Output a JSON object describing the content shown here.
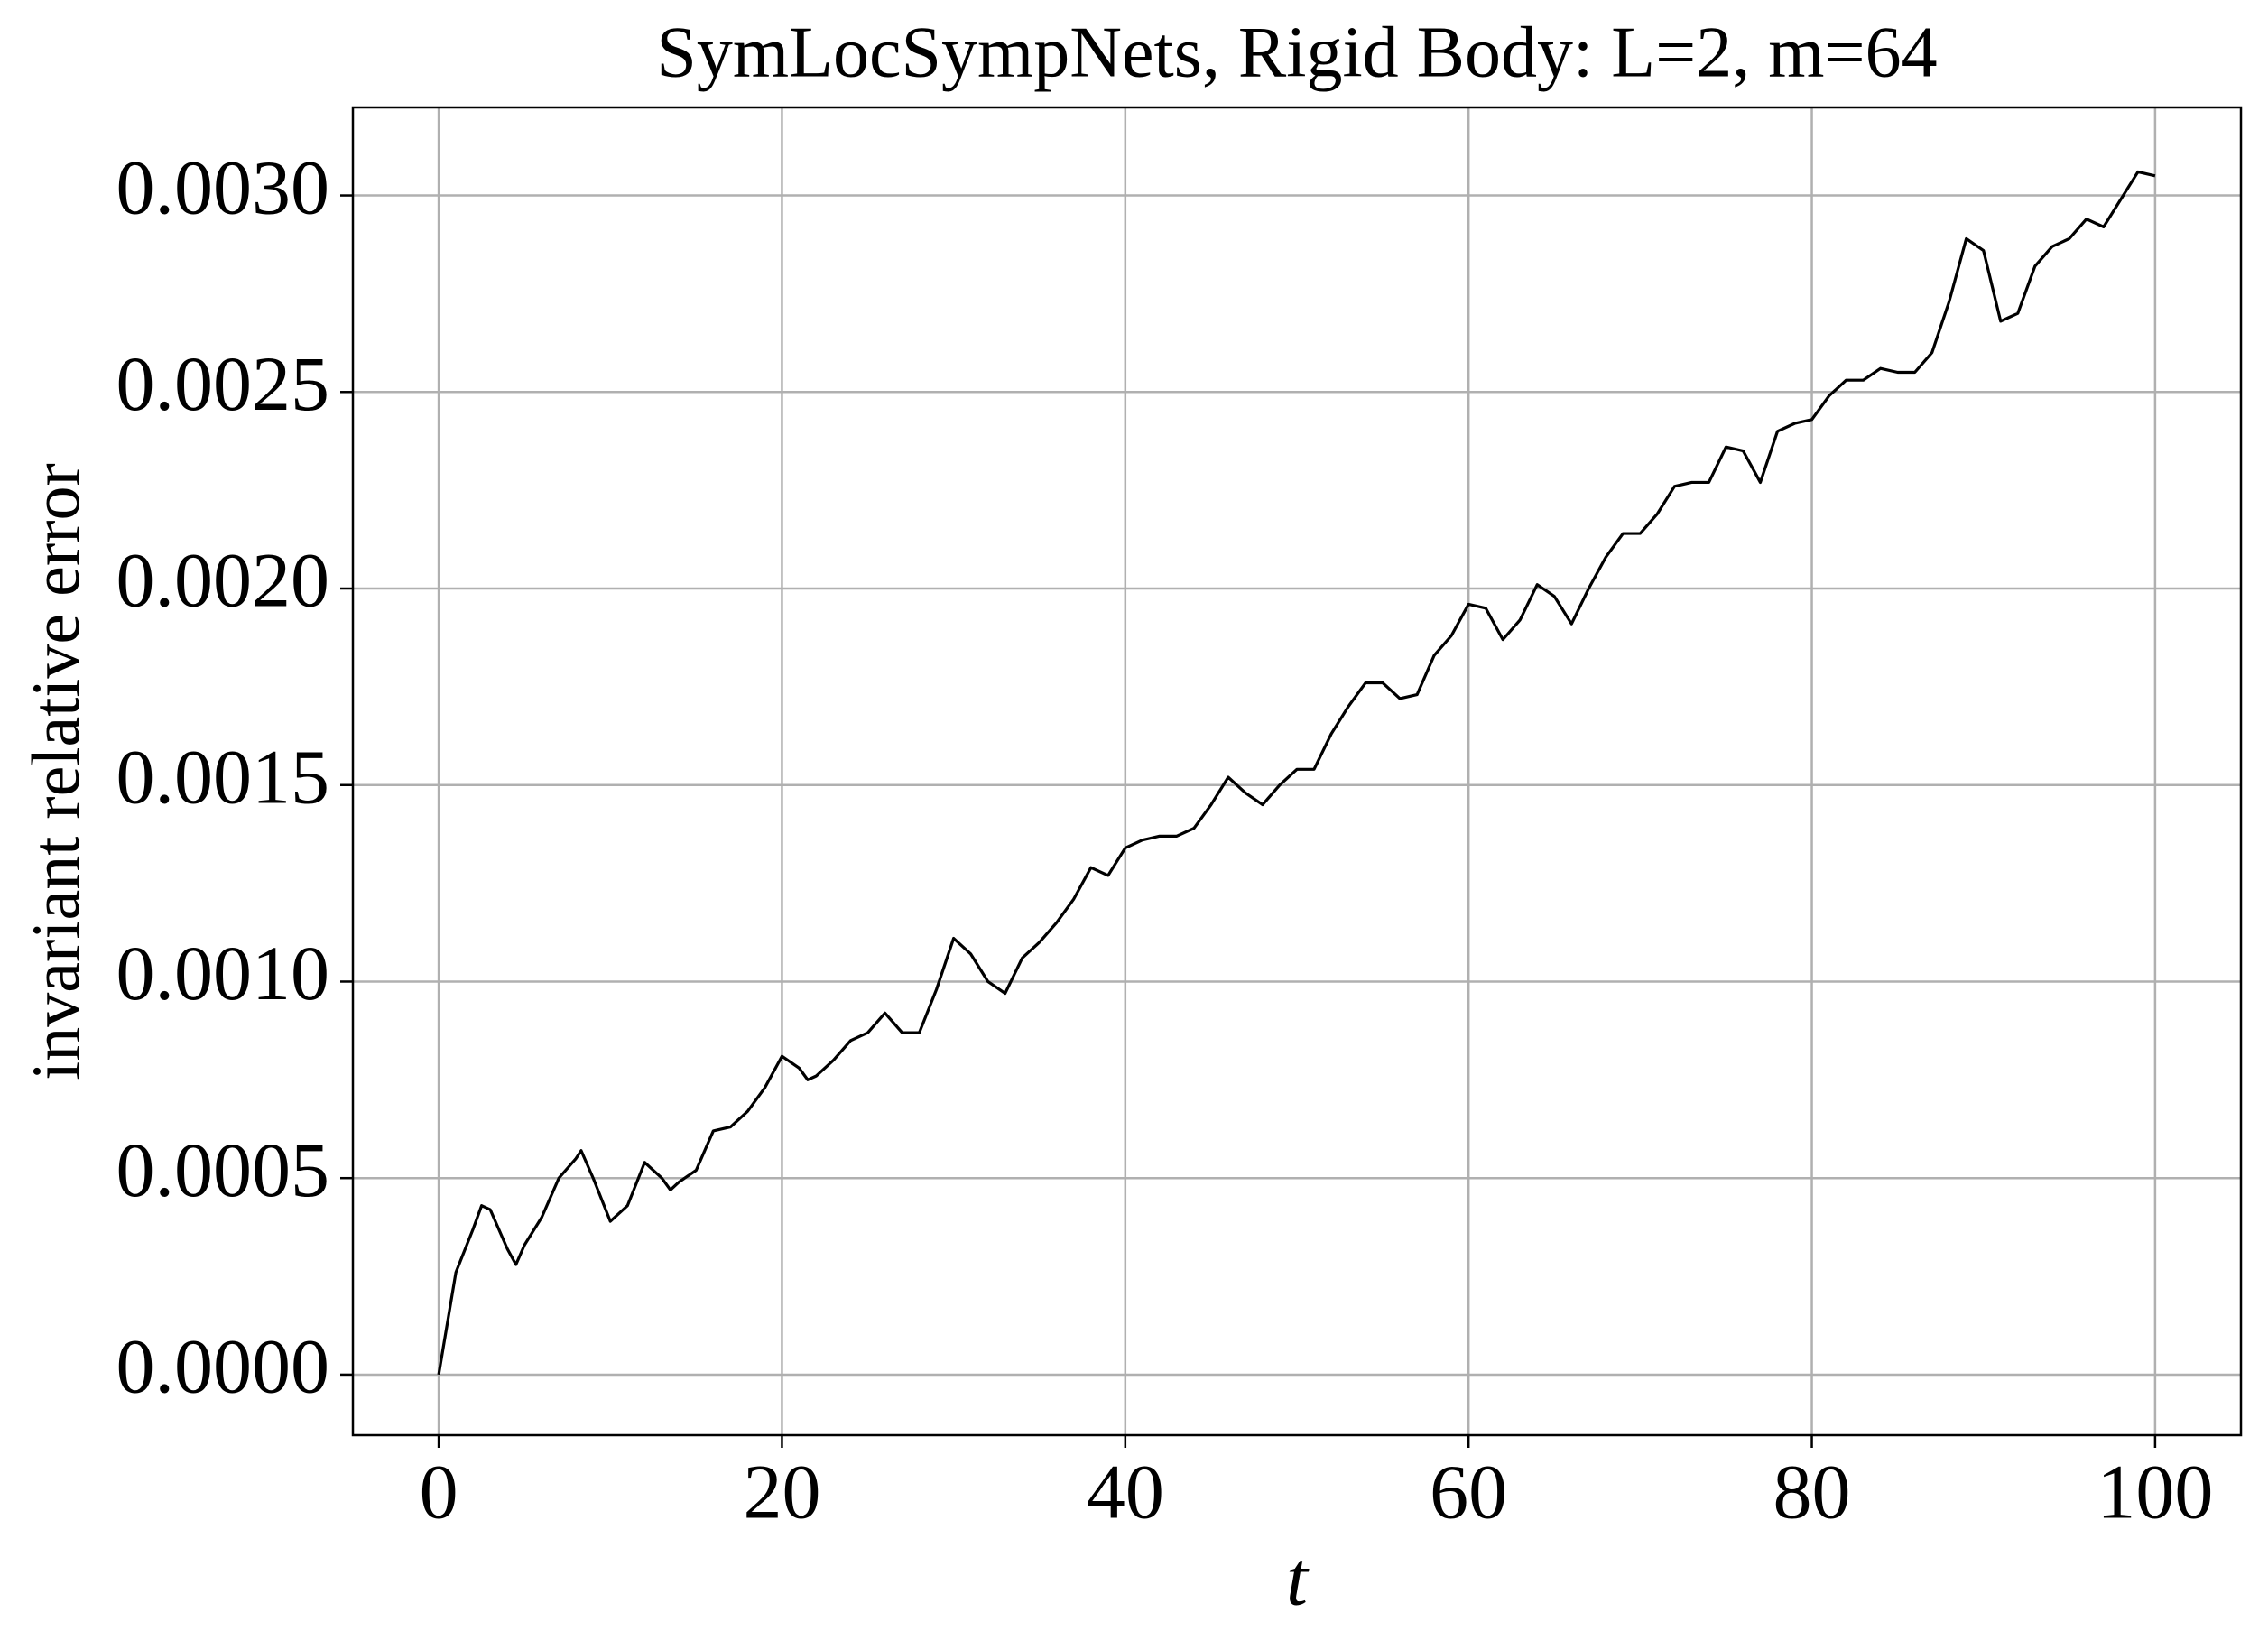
{
  "chart_data": {
    "type": "line",
    "title": "SymLocSympNets, Rigid Body: L=2, m=64",
    "xlabel": "t",
    "ylabel": "invariant relative error",
    "x": [
      0,
      1,
      2,
      2.5,
      3,
      4,
      4.5,
      5,
      6,
      7,
      8,
      8.3,
      9,
      10,
      11,
      12,
      13,
      13.5,
      14,
      15,
      16,
      17,
      18,
      19,
      20,
      21,
      21.5,
      22,
      23,
      24,
      25,
      26,
      27,
      28,
      29,
      30,
      31,
      32,
      33,
      34,
      35,
      36,
      37,
      38,
      39,
      40,
      41,
      42,
      43,
      44,
      45,
      46,
      47,
      48,
      49,
      50,
      51,
      52,
      53,
      54,
      55,
      56,
      57,
      58,
      59,
      60,
      61,
      62,
      63,
      64,
      65,
      66,
      67,
      68,
      69,
      70,
      71,
      72,
      73,
      74,
      75,
      76,
      77,
      78,
      79,
      80,
      81,
      82,
      83,
      84,
      85,
      86,
      87,
      88,
      89,
      90,
      91,
      92,
      93,
      94,
      95,
      96,
      97,
      98,
      99,
      100
    ],
    "series": [
      {
        "name": "invariant relative error",
        "color": "#000000",
        "values": [
          0,
          0.00026,
          0.00037,
          0.00043,
          0.00042,
          0.00032,
          0.00028,
          0.00033,
          0.0004,
          0.0005,
          0.00055,
          0.00057,
          0.0005,
          0.00039,
          0.00043,
          0.00054,
          0.0005,
          0.00047,
          0.00049,
          0.00052,
          0.00062,
          0.00063,
          0.00067,
          0.00073,
          0.00081,
          0.00078,
          0.00075,
          0.00076,
          0.0008,
          0.00085,
          0.00087,
          0.00092,
          0.00087,
          0.00087,
          0.00098,
          0.00111,
          0.00107,
          0.001,
          0.00097,
          0.00106,
          0.0011,
          0.00115,
          0.00121,
          0.00129,
          0.00127,
          0.00134,
          0.00136,
          0.00137,
          0.00137,
          0.00139,
          0.00145,
          0.00152,
          0.00148,
          0.00145,
          0.0015,
          0.00154,
          0.00154,
          0.00163,
          0.0017,
          0.00176,
          0.00176,
          0.00172,
          0.00173,
          0.00183,
          0.00188,
          0.00196,
          0.00195,
          0.00187,
          0.00192,
          0.00201,
          0.00198,
          0.00191,
          0.002,
          0.00208,
          0.00214,
          0.00214,
          0.00219,
          0.00226,
          0.00227,
          0.00227,
          0.00236,
          0.00235,
          0.00227,
          0.0024,
          0.00242,
          0.00243,
          0.00249,
          0.00253,
          0.00253,
          0.00256,
          0.00255,
          0.00255,
          0.0026,
          0.00273,
          0.00289,
          0.00286,
          0.00268,
          0.0027,
          0.00282,
          0.00287,
          0.00289,
          0.00294,
          0.00292,
          0.00299,
          0.00306,
          0.00305
        ]
      }
    ],
    "xlim": [
      -5,
      105
    ],
    "ylim": [
      -0.000154,
      0.003224
    ],
    "xticks": [
      0,
      20,
      40,
      60,
      80,
      100
    ],
    "yticks": [
      {
        "value": 0,
        "label": "0.0000"
      },
      {
        "value": 0.0005,
        "label": "0.0005"
      },
      {
        "value": 0.001,
        "label": "0.0010"
      },
      {
        "value": 0.0015,
        "label": "0.0015"
      },
      {
        "value": 0.002,
        "label": "0.0020"
      },
      {
        "value": 0.0025,
        "label": "0.0025"
      },
      {
        "value": 0.003,
        "label": "0.0030"
      }
    ],
    "grid": true
  }
}
